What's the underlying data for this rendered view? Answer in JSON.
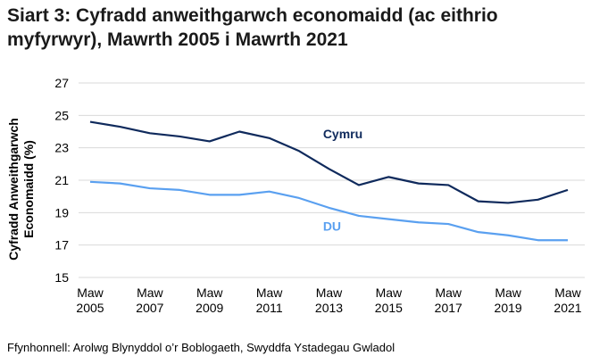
{
  "chart_data": {
    "type": "line",
    "title": "Siart 3: Cyfradd anweithgarwch economaidd (ac eithrio myfyrwyr), Mawrth 2005 i Mawrth 2021",
    "ylabel_lines": [
      "Cyfradd Anweithgarwch",
      "Economaidd (%)"
    ],
    "xlabel": "",
    "ylim": [
      15,
      27
    ],
    "yticks": [
      "15",
      "17",
      "19",
      "21",
      "23",
      "25",
      "27"
    ],
    "x": [
      2005,
      2006,
      2007,
      2008,
      2009,
      2010,
      2011,
      2012,
      2013,
      2014,
      2015,
      2016,
      2017,
      2018,
      2019,
      2020,
      2021
    ],
    "xtick_labels": [
      {
        "year": 2005,
        "line1": "Maw",
        "line2": "2005"
      },
      {
        "year": 2007,
        "line1": "Maw",
        "line2": "2007"
      },
      {
        "year": 2009,
        "line1": "Maw",
        "line2": "2009"
      },
      {
        "year": 2011,
        "line1": "Maw",
        "line2": "2011"
      },
      {
        "year": 2013,
        "line1": "Maw",
        "line2": "2013"
      },
      {
        "year": 2015,
        "line1": "Maw",
        "line2": "2015"
      },
      {
        "year": 2017,
        "line1": "Maw",
        "line2": "2017"
      },
      {
        "year": 2019,
        "line1": "Maw",
        "line2": "2019"
      },
      {
        "year": 2021,
        "line1": "Maw",
        "line2": "2021"
      }
    ],
    "grid": true,
    "series": [
      {
        "name": "Cymru",
        "color": "#0f2a5c",
        "label_at": [
          2012.8,
          23.6
        ],
        "values": [
          24.6,
          24.3,
          23.9,
          23.7,
          23.4,
          24.0,
          23.6,
          22.8,
          21.7,
          20.7,
          21.2,
          20.8,
          20.7,
          19.7,
          19.6,
          19.8,
          20.4
        ]
      },
      {
        "name": "DU",
        "color": "#5aa0f0",
        "label_at": [
          2012.8,
          17.9
        ],
        "values": [
          20.9,
          20.8,
          20.5,
          20.4,
          20.1,
          20.1,
          20.3,
          19.9,
          19.3,
          18.8,
          18.6,
          18.4,
          18.3,
          17.8,
          17.6,
          17.3,
          17.3
        ]
      }
    ]
  },
  "source": "Ffynhonnell: Arolwg Blynyddol o’r Boblogaeth, Swyddfa Ystadegau Gwladol"
}
